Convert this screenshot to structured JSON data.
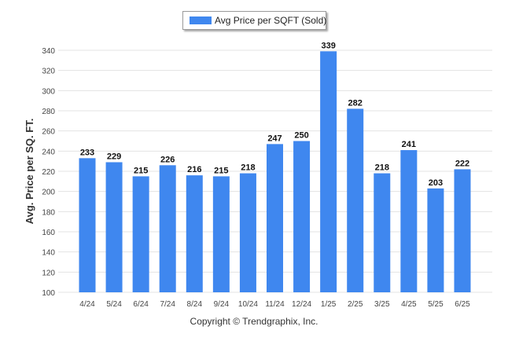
{
  "chart_data": {
    "type": "bar",
    "title": "",
    "xlabel": "",
    "ylabel": "Avg. Price per SQ. FT.",
    "categories": [
      "4/24",
      "5/24",
      "6/24",
      "7/24",
      "8/24",
      "9/24",
      "10/24",
      "11/24",
      "12/24",
      "1/25",
      "2/25",
      "3/25",
      "4/25",
      "5/25",
      "6/25"
    ],
    "series": [
      {
        "name": "Avg Price per SQFT (Sold)",
        "color": "#3f87ef",
        "values": [
          233,
          229,
          215,
          226,
          216,
          215,
          218,
          247,
          250,
          339,
          282,
          218,
          241,
          203,
          222
        ]
      }
    ],
    "ylim": [
      100,
      340
    ],
    "yticks": [
      100,
      120,
      140,
      160,
      180,
      200,
      220,
      240,
      260,
      280,
      300,
      320,
      340
    ],
    "grid": true,
    "legend_position": "top-center"
  },
  "footer": {
    "copyright": "Copyright © Trendgraphix, Inc."
  }
}
